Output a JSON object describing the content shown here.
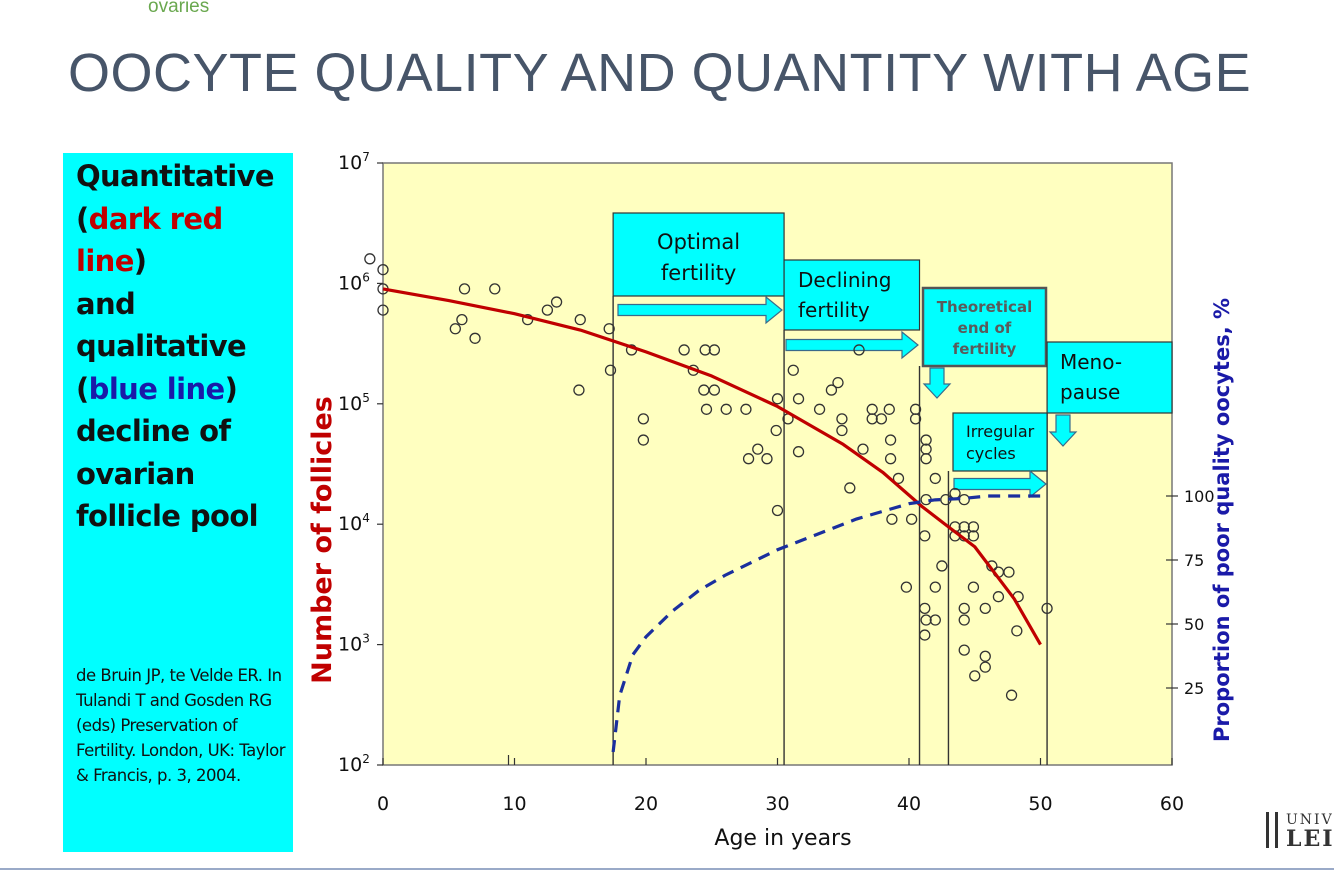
{
  "header": {
    "snippet": "ovaries",
    "title": "OOCYTE QUALITY AND QUANTITY WITH AGE"
  },
  "panel": {
    "line1": "Quantitative",
    "line2_open": "(",
    "line2_red": "dark red line",
    "line2_close": ")",
    "line3": "and",
    "line4": "qualitative",
    "line5_open": "(",
    "line5_blue": "blue line",
    "line5_close": ")",
    "line6": "decline of",
    "line7": "ovarian",
    "line8": "follicle pool",
    "citation": "de Bruin JP, te Velde ER. In Tulandi T and Gosden RG (eds) Preservation of Fertility. London, UK: Taylor & Francis, p. 3, 2004.",
    "colors": {
      "red": "#c00000",
      "blue": "#1a1aa8",
      "background": "#00ffff"
    }
  },
  "logo": {
    "line1": "UNIV",
    "line2": "LEI"
  },
  "chart_data": {
    "type": "scatter",
    "title": "",
    "xlabel": "Age in years",
    "ylabel": "Number of follicles",
    "y2label": "Proportion of poor quality oocytes, %",
    "xlim": [
      0,
      60
    ],
    "ylim": [
      100,
      10000000
    ],
    "yscale": "log",
    "y2ticks": [
      25,
      50,
      75,
      100
    ],
    "x_ticks": [
      0,
      10,
      20,
      30,
      40,
      50,
      60
    ],
    "x_tick_labels": [
      "0",
      "10",
      "20",
      "30",
      "40",
      "50",
      "60"
    ],
    "y_tick_values": [
      100,
      1000,
      10000,
      100000,
      1000000,
      10000000
    ],
    "y_tick_bases": [
      "10",
      "10",
      "10",
      "10",
      "10",
      "10"
    ],
    "y_tick_exps": [
      "2",
      "3",
      "4",
      "5",
      "6",
      "7"
    ],
    "grid": false,
    "colors": {
      "plot_bg": "#ffffc0",
      "quantity_line": "#c00000",
      "quality_line": "#1a2f9e",
      "box": "#00ffff",
      "box_text": "#111111",
      "theoretical_text": "#5a5a5a",
      "y2label": "#1a1aa8",
      "ylabel": "#c00000"
    },
    "series": [
      {
        "type": "scatter",
        "points": [
          [
            -1,
            1600000
          ],
          [
            0,
            1300000
          ],
          [
            0,
            900000
          ],
          [
            0,
            600000
          ],
          [
            5.5,
            420000
          ],
          [
            6,
            500000
          ],
          [
            6.2,
            900000
          ],
          [
            7,
            350000
          ],
          [
            8.5,
            900000
          ],
          [
            11,
            500000
          ],
          [
            12.5,
            600000
          ],
          [
            13.2,
            700000
          ],
          [
            15,
            500000
          ],
          [
            14.9,
            130000
          ],
          [
            17.2,
            420000
          ],
          [
            17.3,
            190000
          ],
          [
            18.9,
            280000
          ],
          [
            19.8,
            75000
          ],
          [
            19.8,
            50000
          ],
          [
            22.9,
            280000
          ],
          [
            23.6,
            190000
          ],
          [
            24.5,
            280000
          ],
          [
            24.4,
            130000
          ],
          [
            25.2,
            280000
          ],
          [
            24.6,
            90000
          ],
          [
            25.2,
            130000
          ],
          [
            26.1,
            90000
          ],
          [
            27.6,
            90000
          ],
          [
            27.8,
            35000
          ],
          [
            28.5,
            42000
          ],
          [
            29.2,
            35000
          ],
          [
            29.9,
            60000
          ],
          [
            30,
            110000
          ],
          [
            30,
            13000
          ],
          [
            30.8,
            75000
          ],
          [
            31.2,
            190000
          ],
          [
            31.6,
            110000
          ],
          [
            31.6,
            40000
          ],
          [
            33.2,
            90000
          ],
          [
            34.1,
            130000
          ],
          [
            34.6,
            150000
          ],
          [
            34.9,
            75000
          ],
          [
            34.9,
            60000
          ],
          [
            35.5,
            20000
          ],
          [
            36.2,
            280000
          ],
          [
            36.5,
            42000
          ],
          [
            37.2,
            90000
          ],
          [
            37.2,
            75000
          ],
          [
            37.9,
            75000
          ],
          [
            38.5,
            90000
          ],
          [
            38.6,
            50000
          ],
          [
            38.6,
            35000
          ],
          [
            38.7,
            11000
          ],
          [
            39.2,
            24000
          ],
          [
            39.8,
            3000
          ],
          [
            40.2,
            11000
          ],
          [
            40.5,
            90000
          ],
          [
            40.5,
            75000
          ],
          [
            41.3,
            50000
          ],
          [
            41.3,
            42000
          ],
          [
            41.3,
            35000
          ],
          [
            41.3,
            16000
          ],
          [
            41.2,
            8000
          ],
          [
            41.2,
            2000
          ],
          [
            41.3,
            1600
          ],
          [
            41.2,
            1200
          ],
          [
            42,
            1600
          ],
          [
            42,
            3000
          ],
          [
            42,
            24000
          ],
          [
            42.5,
            4500
          ],
          [
            42.8,
            16000
          ],
          [
            43.5,
            18000
          ],
          [
            43.5,
            9500
          ],
          [
            43.5,
            8000
          ],
          [
            44.2,
            16000
          ],
          [
            44.2,
            9500
          ],
          [
            44.2,
            8000
          ],
          [
            44.9,
            9500
          ],
          [
            44.9,
            8000
          ],
          [
            44.9,
            3000
          ],
          [
            44.2,
            2000
          ],
          [
            44.2,
            1600
          ],
          [
            44.2,
            900
          ],
          [
            45,
            550
          ],
          [
            45.8,
            2000
          ],
          [
            45.8,
            800
          ],
          [
            45.8,
            650
          ],
          [
            46.3,
            4500
          ],
          [
            46.8,
            2500
          ],
          [
            46.8,
            4000
          ],
          [
            47.6,
            4000
          ],
          [
            47.8,
            380
          ],
          [
            48.2,
            1300
          ],
          [
            48.3,
            2500
          ],
          [
            50.5,
            2000
          ]
        ],
        "color": "#333333"
      },
      {
        "type": "line",
        "points": [
          [
            0,
            900000
          ],
          [
            5,
            720000
          ],
          [
            10,
            560000
          ],
          [
            15,
            410000
          ],
          [
            20,
            270000
          ],
          [
            25,
            170000
          ],
          [
            30,
            95000
          ],
          [
            35,
            46000
          ],
          [
            38,
            27000
          ],
          [
            41,
            14000
          ],
          [
            43,
            9500
          ],
          [
            45,
            6500
          ],
          [
            48,
            2400
          ],
          [
            50,
            1000
          ]
        ],
        "color": "#c00000"
      },
      {
        "type": "line",
        "dashed": true,
        "axis": "y2",
        "points": [
          [
            17.5,
            0
          ],
          [
            18,
            22
          ],
          [
            19,
            38
          ],
          [
            20,
            45
          ],
          [
            22,
            55
          ],
          [
            24,
            63
          ],
          [
            26,
            69
          ],
          [
            28,
            74
          ],
          [
            30,
            79
          ],
          [
            32,
            83
          ],
          [
            34,
            87
          ],
          [
            36,
            91
          ],
          [
            38,
            94
          ],
          [
            40,
            97
          ],
          [
            42,
            98.5
          ],
          [
            44,
            99
          ],
          [
            46,
            100
          ],
          [
            50,
            100
          ]
        ],
        "color": "#1a2f9e"
      }
    ],
    "boxes": [
      {
        "label1": "Optimal",
        "label2": "fertility"
      },
      {
        "label1": "Declining",
        "label2": "fertility"
      },
      {
        "label1": "Theoretical",
        "label2": "end of",
        "label3": "fertility"
      },
      {
        "label1": "Irregular",
        "label2": "cycles"
      },
      {
        "label1": "Meno-",
        "label2": "pause"
      }
    ]
  }
}
